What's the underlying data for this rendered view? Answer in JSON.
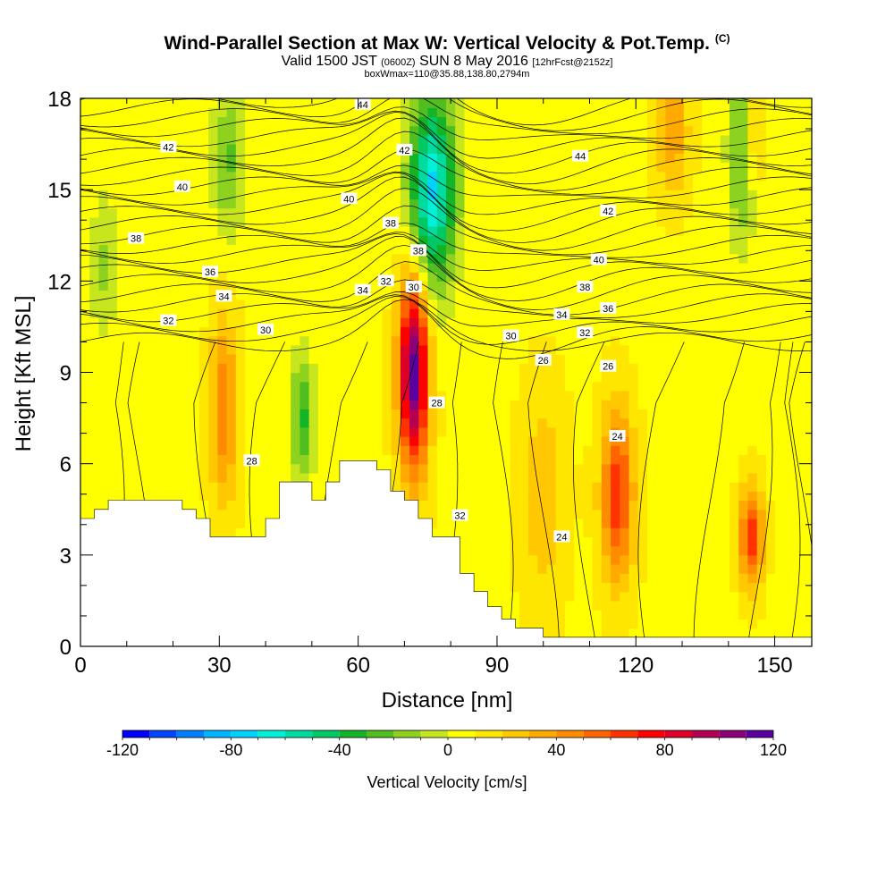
{
  "title": {
    "main": "Wind-Parallel Section at Max W: Vertical Velocity & Pot.Temp.",
    "main_mark": "(C)",
    "valid_prefix": "Valid 1500 JST",
    "valid_utc": "(0600Z)",
    "valid_date": "SUN 8 May 2016",
    "forecast": "[12hrFcst@2152z]",
    "box_info": "boxWmax=110@35.88,138.80,2794m"
  },
  "chart_data": {
    "type": "heatmap",
    "xlabel": "Distance [nm]",
    "ylabel": "Height [Kft MSL]",
    "xlim": [
      0,
      158
    ],
    "ylim": [
      0,
      18
    ],
    "xticks": [
      0,
      30,
      60,
      90,
      120,
      150
    ],
    "yticks": [
      0,
      3,
      6,
      9,
      12,
      15,
      18
    ],
    "colorbar": {
      "label": "Vertical Velocity [cm/s]",
      "range": [
        -120,
        120
      ],
      "step": 10,
      "tick_values": [
        -120,
        -80,
        -40,
        0,
        40,
        80,
        120
      ],
      "colors": [
        "#0000ff",
        "#0045ff",
        "#0080ff",
        "#00b4ff",
        "#00d2ff",
        "#00f0d8",
        "#00dca0",
        "#00c864",
        "#14b428",
        "#50be1e",
        "#8cd21e",
        "#c8e61e",
        "#ffff00",
        "#ffe600",
        "#ffc800",
        "#ffaa00",
        "#ff8c00",
        "#ff6400",
        "#ff3200",
        "#ff0000",
        "#dc0028",
        "#b40050",
        "#8c0078",
        "#5a00a0"
      ]
    },
    "terrain": [
      [
        0,
        4.2
      ],
      [
        3,
        4.2
      ],
      [
        3,
        4.5
      ],
      [
        6,
        4.5
      ],
      [
        6,
        4.8
      ],
      [
        22,
        4.8
      ],
      [
        22,
        4.5
      ],
      [
        25,
        4.5
      ],
      [
        25,
        4.2
      ],
      [
        28,
        4.2
      ],
      [
        28,
        3.6
      ],
      [
        40,
        3.6
      ],
      [
        40,
        4.2
      ],
      [
        43,
        4.2
      ],
      [
        43,
        5.4
      ],
      [
        50,
        5.4
      ],
      [
        50,
        4.8
      ],
      [
        53,
        4.8
      ],
      [
        53,
        5.4
      ],
      [
        56,
        5.4
      ],
      [
        56,
        6.1
      ],
      [
        64,
        6.1
      ],
      [
        64,
        5.8
      ],
      [
        67,
        5.8
      ],
      [
        67,
        5.1
      ],
      [
        70,
        5.1
      ],
      [
        70,
        4.8
      ],
      [
        73,
        4.8
      ],
      [
        73,
        4.2
      ],
      [
        76,
        4.2
      ],
      [
        76,
        3.6
      ],
      [
        82,
        3.6
      ],
      [
        82,
        2.4
      ],
      [
        85,
        2.4
      ],
      [
        85,
        1.8
      ],
      [
        88,
        1.8
      ],
      [
        88,
        1.3
      ],
      [
        91,
        1.3
      ],
      [
        91,
        0.9
      ],
      [
        94,
        0.9
      ],
      [
        94,
        0.6
      ],
      [
        100,
        0.6
      ],
      [
        100,
        0.3
      ],
      [
        158,
        0.3
      ]
    ],
    "w_features": [
      {
        "x": 72,
        "y": 9.0,
        "rx": 3.2,
        "ry": 3.2,
        "w": 110
      },
      {
        "x": 116,
        "y": 5.0,
        "rx": 3.5,
        "ry": 2.8,
        "w": 60
      },
      {
        "x": 145,
        "y": 3.6,
        "rx": 2.5,
        "ry": 1.6,
        "w": 60
      },
      {
        "x": 31,
        "y": 7.8,
        "rx": 3.0,
        "ry": 3.0,
        "w": 40
      },
      {
        "x": 128,
        "y": 17.0,
        "rx": 3.5,
        "ry": 2.2,
        "w": 30
      },
      {
        "x": 145,
        "y": 17.0,
        "rx": 2.5,
        "ry": 2.0,
        "w": 30
      },
      {
        "x": 100,
        "y": 5.0,
        "rx": 5.0,
        "ry": 3.5,
        "w": 20
      },
      {
        "x": 48,
        "y": 7.5,
        "rx": 2.5,
        "ry": 2.2,
        "w": -40
      },
      {
        "x": 76,
        "y": 15.0,
        "rx": 5.0,
        "ry": 3.2,
        "w": -80
      },
      {
        "x": 143,
        "y": 16.5,
        "rx": 3.0,
        "ry": 3.2,
        "w": -40
      },
      {
        "x": 32,
        "y": 16.0,
        "rx": 3.5,
        "ry": 2.5,
        "w": -30
      },
      {
        "x": 5,
        "y": 12.5,
        "rx": 3.0,
        "ry": 2.5,
        "w": -20
      }
    ],
    "contour_labels": [
      {
        "text": "44",
        "x": 61,
        "y": 17.8
      },
      {
        "text": "44",
        "x": 108,
        "y": 16.1
      },
      {
        "text": "42",
        "x": 19,
        "y": 16.4
      },
      {
        "text": "42",
        "x": 70,
        "y": 16.3
      },
      {
        "text": "42",
        "x": 114,
        "y": 14.3
      },
      {
        "text": "40",
        "x": 22,
        "y": 15.1
      },
      {
        "text": "40",
        "x": 58,
        "y": 14.7
      },
      {
        "text": "40",
        "x": 112,
        "y": 12.7
      },
      {
        "text": "38",
        "x": 12,
        "y": 13.4
      },
      {
        "text": "38",
        "x": 67,
        "y": 13.9
      },
      {
        "text": "38",
        "x": 73,
        "y": 13.0
      },
      {
        "text": "38",
        "x": 109,
        "y": 11.8
      },
      {
        "text": "36",
        "x": 28,
        "y": 12.3
      },
      {
        "text": "36",
        "x": 114,
        "y": 11.1
      },
      {
        "text": "34",
        "x": 31,
        "y": 11.5
      },
      {
        "text": "34",
        "x": 61,
        "y": 11.7
      },
      {
        "text": "34",
        "x": 104,
        "y": 10.9
      },
      {
        "text": "32",
        "x": 19,
        "y": 10.7
      },
      {
        "text": "32",
        "x": 66,
        "y": 12.0
      },
      {
        "text": "32",
        "x": 109,
        "y": 10.3
      },
      {
        "text": "32",
        "x": 82,
        "y": 4.3
      },
      {
        "text": "30",
        "x": 40,
        "y": 10.4
      },
      {
        "text": "30",
        "x": 72,
        "y": 11.8
      },
      {
        "text": "30",
        "x": 93,
        "y": 10.2
      },
      {
        "text": "28",
        "x": 37,
        "y": 6.1
      },
      {
        "text": "28",
        "x": 77,
        "y": 8.0
      },
      {
        "text": "26",
        "x": 100,
        "y": 9.4
      },
      {
        "text": "26",
        "x": 114,
        "y": 9.2
      },
      {
        "text": "24",
        "x": 116,
        "y": 6.9
      },
      {
        "text": "24",
        "x": 104,
        "y": 3.6
      }
    ]
  }
}
